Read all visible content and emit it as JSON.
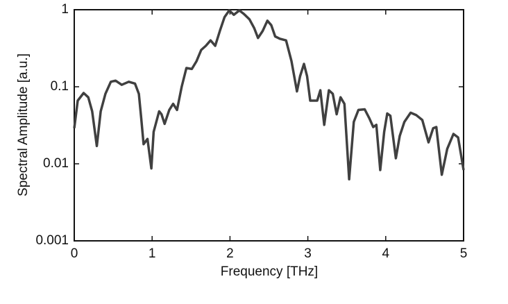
{
  "chart_data": {
    "type": "line",
    "xlabel": "Frequency [THz]",
    "ylabel": "Spectral Amplitude [a.u.]",
    "xlim": [
      0,
      5
    ],
    "xticks": [
      0,
      1,
      2,
      3,
      4,
      5
    ],
    "ylim": [
      0.001,
      1
    ],
    "yticks": [
      0.001,
      0.01,
      0.1,
      1
    ],
    "yscale": "log",
    "series": [
      {
        "color": "#404040",
        "x": [
          0,
          0.045,
          0.12,
          0.18,
          0.23,
          0.29,
          0.34,
          0.4,
          0.47,
          0.53,
          0.61,
          0.7,
          0.78,
          0.83,
          0.86,
          0.89,
          0.94,
          0.99,
          1.02,
          1.09,
          1.12,
          1.16,
          1.22,
          1.27,
          1.32,
          1.38,
          1.44,
          1.51,
          1.57,
          1.63,
          1.69,
          1.75,
          1.81,
          1.87,
          1.93,
          1.99,
          2.05,
          2.12,
          2.18,
          2.25,
          2.31,
          2.36,
          2.42,
          2.48,
          2.53,
          2.58,
          2.64,
          2.72,
          2.79,
          2.86,
          2.9,
          2.95,
          2.99,
          3.03,
          3.07,
          3.12,
          3.16,
          3.21,
          3.27,
          3.32,
          3.37,
          3.42,
          3.47,
          3.53,
          3.59,
          3.65,
          3.73,
          3.79,
          3.84,
          3.88,
          3.93,
          3.98,
          4.02,
          4.06,
          4.13,
          4.18,
          4.24,
          4.32,
          4.39,
          4.47,
          4.55,
          4.61,
          4.65,
          4.72,
          4.79,
          4.87,
          4.93,
          5.0
        ],
        "values": [
          0.029,
          0.066,
          0.083,
          0.073,
          0.048,
          0.017,
          0.048,
          0.081,
          0.116,
          0.12,
          0.106,
          0.116,
          0.11,
          0.081,
          0.039,
          0.018,
          0.021,
          0.0087,
          0.026,
          0.048,
          0.044,
          0.033,
          0.05,
          0.06,
          0.05,
          0.1,
          0.175,
          0.17,
          0.215,
          0.3,
          0.34,
          0.4,
          0.34,
          0.53,
          0.8,
          0.98,
          0.86,
          0.98,
          0.88,
          0.75,
          0.58,
          0.43,
          0.53,
          0.72,
          0.63,
          0.45,
          0.42,
          0.4,
          0.215,
          0.087,
          0.137,
          0.198,
          0.137,
          0.066,
          0.066,
          0.066,
          0.09,
          0.032,
          0.09,
          0.081,
          0.044,
          0.073,
          0.06,
          0.0063,
          0.035,
          0.05,
          0.051,
          0.039,
          0.03,
          0.032,
          0.0083,
          0.026,
          0.045,
          0.042,
          0.0118,
          0.023,
          0.035,
          0.046,
          0.043,
          0.037,
          0.019,
          0.029,
          0.03,
          0.0072,
          0.0156,
          0.0244,
          0.022,
          0.0083
        ]
      }
    ]
  }
}
